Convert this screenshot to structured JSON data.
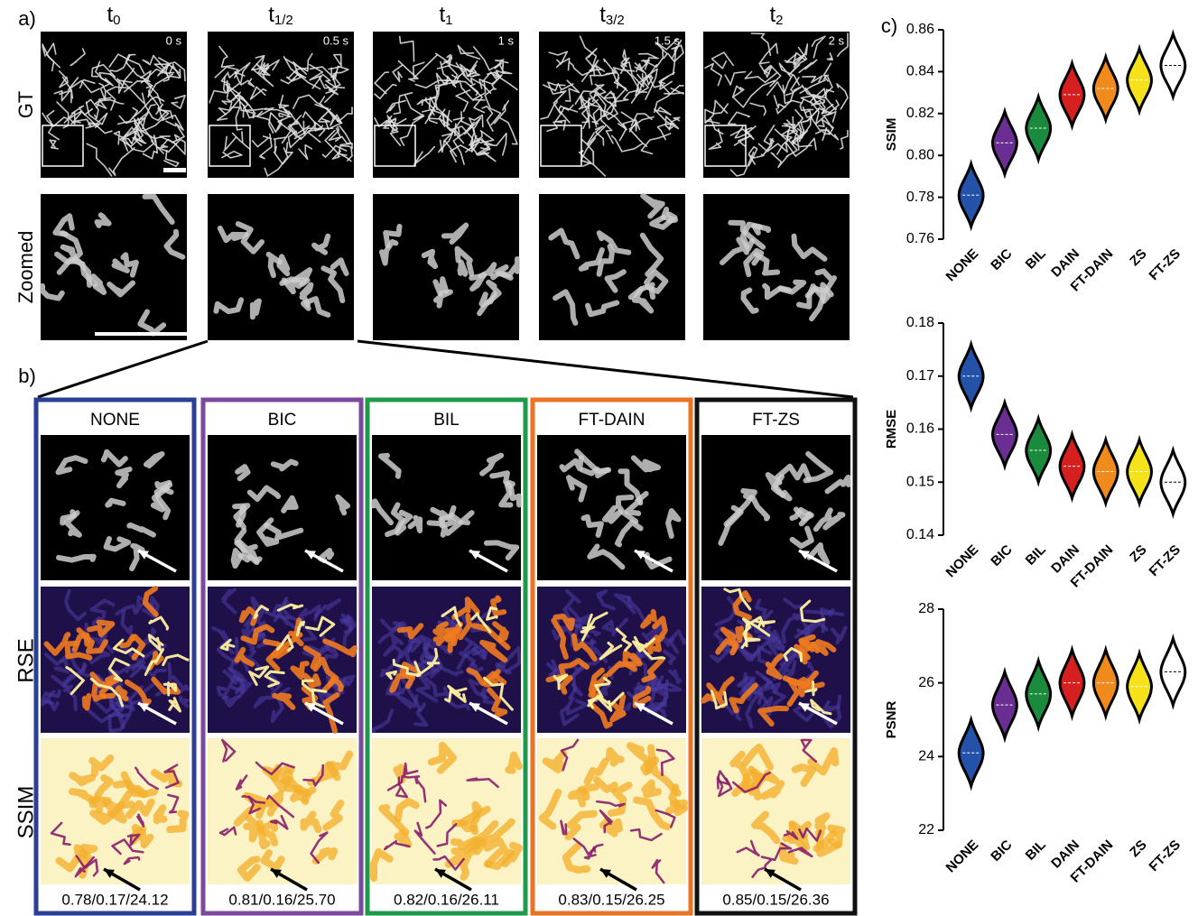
{
  "panel_a": {
    "label": "a)",
    "row_labels": [
      "GT",
      "Zoomed"
    ],
    "columns": [
      {
        "symbol": "t",
        "sub": "0",
        "time": "0 s"
      },
      {
        "symbol": "t",
        "sub": "1/2",
        "time": "0.5 s"
      },
      {
        "symbol": "t",
        "sub": "1",
        "time": "1 s"
      },
      {
        "symbol": "t",
        "sub": "3/2",
        "time": "1.5 s"
      },
      {
        "symbol": "t",
        "sub": "2",
        "time": "2 s"
      }
    ]
  },
  "panel_b": {
    "label": "b)",
    "row_labels": [
      "RSE",
      "SSIM"
    ],
    "columns": [
      {
        "name": "NONE",
        "color": "#2b3f96",
        "metrics": "0.78/0.17/24.12"
      },
      {
        "name": "BIC",
        "color": "#7b4a9c",
        "metrics": "0.81/0.16/25.70"
      },
      {
        "name": "BIL",
        "color": "#1f9a4a",
        "metrics": "0.82/0.16/26.11"
      },
      {
        "name": "FT-DAIN",
        "color": "#ea7324",
        "metrics": "0.83/0.15/26.25"
      },
      {
        "name": "FT-ZS",
        "color": "#111111",
        "metrics": "0.85/0.15/26.36"
      }
    ]
  },
  "panel_c_label": "c)",
  "chart_data": [
    {
      "type": "violin",
      "ylabel": "SSIM",
      "categories": [
        "NONE",
        "BIC",
        "BIL",
        "DAIN",
        "FT-DAIN",
        "ZS",
        "FT-ZS"
      ],
      "colors": [
        "#2452a8",
        "#6a2d91",
        "#1a8a3c",
        "#d62020",
        "#f08a1c",
        "#f5e21a",
        "#ffffff"
      ],
      "values": [
        0.781,
        0.806,
        0.813,
        0.829,
        0.832,
        0.836,
        0.843
      ],
      "ylim": [
        0.76,
        0.86
      ],
      "yticks": [
        0.76,
        0.78,
        {
          "value": 0.8,
          "label": "0.80"
        },
        0.82,
        0.84,
        0.86
      ]
    },
    {
      "type": "violin",
      "ylabel": "RMSE",
      "categories": [
        "NONE",
        "BIC",
        "BIL",
        "DAIN",
        "FT-DAIN",
        "ZS",
        "FT-ZS"
      ],
      "colors": [
        "#2452a8",
        "#6a2d91",
        "#1a8a3c",
        "#d62020",
        "#f08a1c",
        "#f5e21a",
        "#ffffff"
      ],
      "values": [
        0.17,
        0.159,
        0.156,
        0.153,
        0.152,
        0.152,
        0.15
      ],
      "ylim": [
        0.14,
        0.18
      ],
      "yticks": [
        0.14,
        0.15,
        0.16,
        0.17,
        0.18
      ]
    },
    {
      "type": "violin",
      "ylabel": "PSNR",
      "categories": [
        "NONE",
        "BIC",
        "BIL",
        "DAIN",
        "FT-DAIN",
        "ZS",
        "FT-ZS"
      ],
      "colors": [
        "#2452a8",
        "#6a2d91",
        "#1a8a3c",
        "#d62020",
        "#f08a1c",
        "#f5e21a",
        "#ffffff"
      ],
      "values": [
        24.1,
        25.4,
        25.7,
        26.0,
        26.0,
        25.9,
        26.3
      ],
      "ylim": [
        22,
        28
      ],
      "yticks": [
        22,
        24,
        26,
        28
      ]
    }
  ]
}
